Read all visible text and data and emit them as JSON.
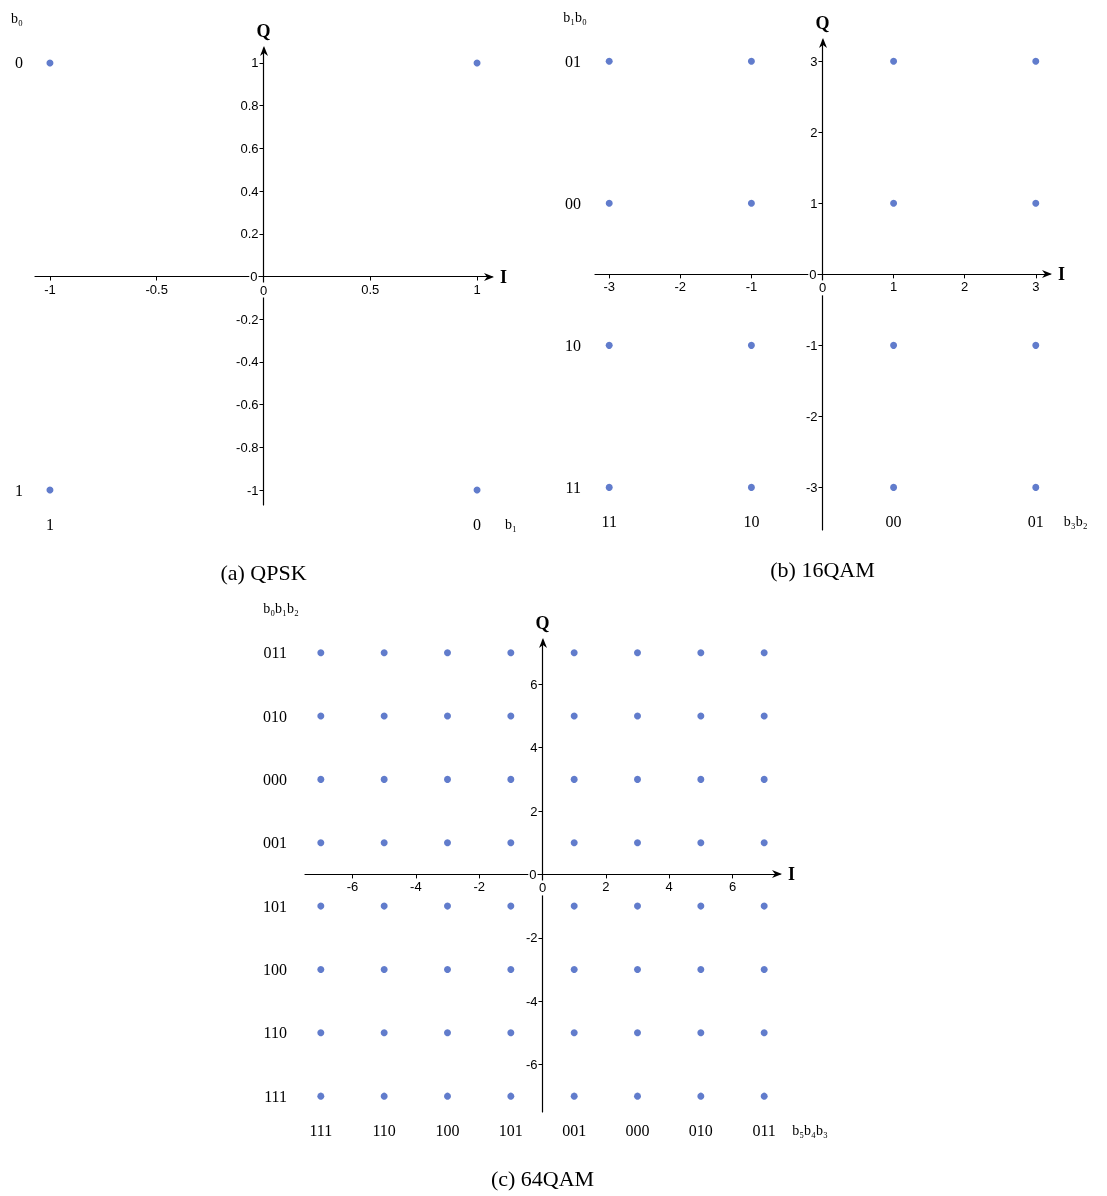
{
  "chart_data": [
    {
      "type": "scatter",
      "title": "(a) QPSK",
      "xlabel": "I",
      "ylabel": "Q",
      "color": "#3a5bbf",
      "marker": "circle",
      "x": [
        -1,
        1,
        -1,
        1
      ],
      "values": [
        1,
        1,
        -1,
        -1
      ],
      "xlim": [
        -1.07,
        1.07
      ],
      "ylim": [
        -1.07,
        1.07
      ],
      "xticks": [
        -1,
        -0.5,
        0,
        0.5,
        1
      ],
      "yticks": [
        -1,
        -0.8,
        -0.6,
        -0.4,
        -0.2,
        0,
        0.2,
        0.4,
        0.6,
        0.8,
        1
      ],
      "annotations": [
        "b₀",
        "b₁",
        "0",
        "1",
        "1",
        "0"
      ]
    },
    {
      "type": "scatter",
      "title": "(b) 16QAM",
      "xlabel": "I",
      "ylabel": "Q",
      "color": "#3a5bbf",
      "marker": "circle",
      "x": [
        -3,
        -1,
        1,
        3,
        -3,
        -1,
        1,
        3,
        -3,
        -1,
        1,
        3,
        -3,
        -1,
        1,
        3
      ],
      "values": [
        3,
        3,
        3,
        3,
        1,
        1,
        1,
        1,
        -1,
        -1,
        -1,
        -1,
        -3,
        -3,
        -3,
        -3
      ],
      "xlim": [
        -3.2,
        3.2
      ],
      "ylim": [
        -3.6,
        3.3
      ],
      "xticks": [
        -3,
        -2,
        -1,
        0,
        1,
        2,
        3
      ],
      "yticks": [
        -3,
        -2,
        -1,
        0,
        1,
        2,
        3
      ],
      "annotations": [
        "b₁b₀",
        "b₃b₂",
        "01",
        "00",
        "10",
        "11",
        "11",
        "10",
        "00",
        "01"
      ]
    },
    {
      "type": "scatter",
      "title": "(c) 64QAM",
      "xlabel": "I",
      "ylabel": "Q",
      "color": "#3a5bbf",
      "marker": "circle",
      "x": [
        -7,
        -5,
        -3,
        -1,
        1,
        3,
        5,
        7,
        -7,
        -5,
        -3,
        -1,
        1,
        3,
        5,
        7,
        -7,
        -5,
        -3,
        -1,
        1,
        3,
        5,
        7,
        -7,
        -5,
        -3,
        -1,
        1,
        3,
        5,
        7,
        -7,
        -5,
        -3,
        -1,
        1,
        3,
        5,
        7,
        -7,
        -5,
        -3,
        -1,
        1,
        3,
        5,
        7,
        -7,
        -5,
        -3,
        -1,
        1,
        3,
        5,
        7,
        -7,
        -5,
        -3,
        -1,
        1,
        3,
        5,
        7
      ],
      "values": [
        7,
        7,
        7,
        7,
        7,
        7,
        7,
        7,
        5,
        5,
        5,
        5,
        5,
        5,
        5,
        5,
        3,
        3,
        3,
        3,
        3,
        3,
        3,
        3,
        1,
        1,
        1,
        1,
        1,
        1,
        1,
        1,
        -1,
        -1,
        -1,
        -1,
        -1,
        -1,
        -1,
        -1,
        -3,
        -3,
        -3,
        -3,
        -3,
        -3,
        -3,
        -3,
        -5,
        -5,
        -5,
        -5,
        -5,
        -5,
        -5,
        -5,
        -7,
        -7,
        -7,
        -7,
        -7,
        -7,
        -7,
        -7
      ],
      "xlim": [
        -7.5,
        7.5
      ],
      "ylim": [
        -7.5,
        7.4
      ],
      "xticks": [
        -6,
        -4,
        -2,
        0,
        2,
        4,
        6
      ],
      "yticks": [
        -6,
        -4,
        -2,
        0,
        2,
        4,
        6
      ],
      "annotations": [
        "b₀b₁b₂",
        "b₅b₄b₃",
        "011",
        "010",
        "000",
        "001",
        "101",
        "100",
        "110",
        "111",
        "111",
        "110",
        "100",
        "101",
        "001",
        "000",
        "010",
        "011"
      ]
    }
  ]
}
